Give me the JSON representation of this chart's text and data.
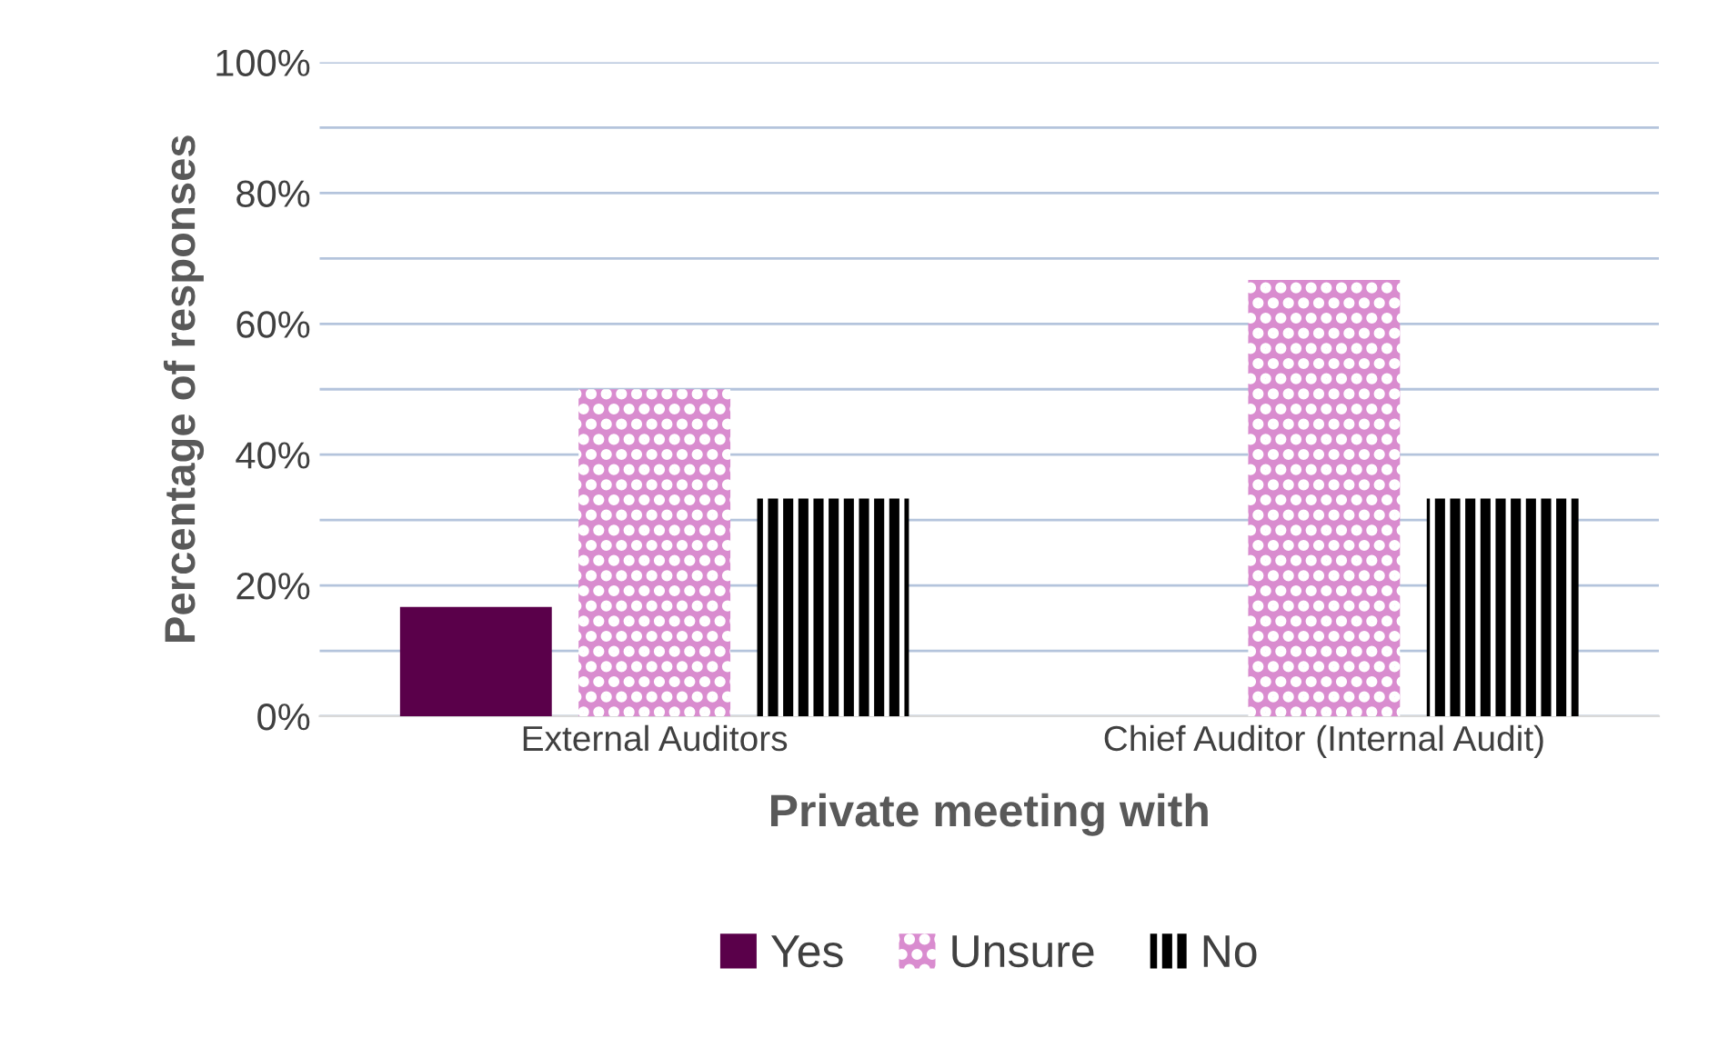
{
  "chart_data": {
    "type": "bar",
    "xlabel": "Private meeting with",
    "ylabel": "Percentage of responses",
    "categories": [
      "External Auditors",
      "Chief Auditor (Internal Audit)"
    ],
    "series": [
      {
        "name": "Yes",
        "color": "#5a004a",
        "values": [
          16.7,
          0
        ]
      },
      {
        "name": "Unsure",
        "color": "#d98ccf",
        "values": [
          50,
          66.7
        ]
      },
      {
        "name": "No",
        "color": "#000000",
        "values": [
          33.3,
          33.3
        ]
      }
    ],
    "ylim": [
      0,
      100
    ],
    "yticks": [
      {
        "value": 0,
        "label": "0%"
      },
      {
        "value": 10,
        "label": null
      },
      {
        "value": 20,
        "label": "20%"
      },
      {
        "value": 30,
        "label": null
      },
      {
        "value": 40,
        "label": "40%"
      },
      {
        "value": 50,
        "label": null
      },
      {
        "value": 60,
        "label": "60%"
      },
      {
        "value": 70,
        "label": null
      },
      {
        "value": 80,
        "label": "80%"
      },
      {
        "value": 90,
        "label": null
      },
      {
        "value": 100,
        "label": "100%"
      }
    ],
    "grid": "y",
    "legend": "bottom"
  }
}
